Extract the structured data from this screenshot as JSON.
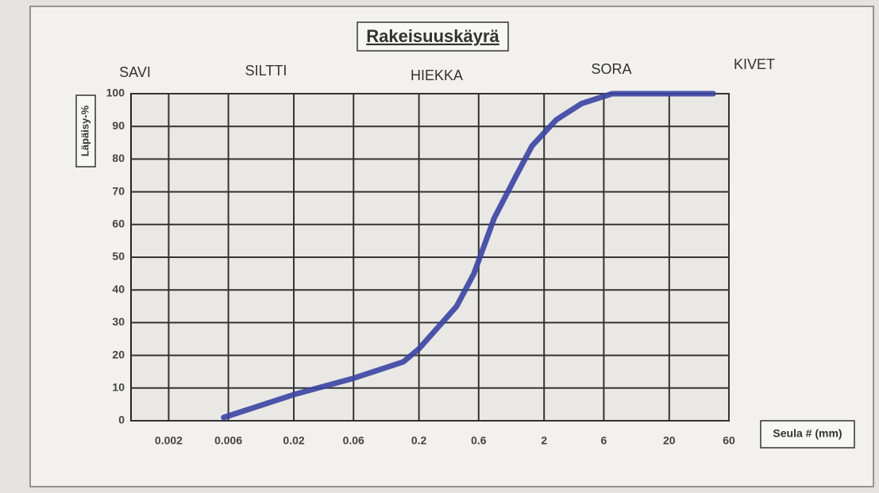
{
  "chart_data": {
    "type": "line",
    "title": "Rakeisuuskäyrä",
    "y_label": "Läpäisy-%",
    "x_label": "Seula # (mm)",
    "zones": [
      "SAVI",
      "SILTTI",
      "HIEKKA",
      "SORA",
      "KIVET"
    ],
    "x": [
      0.0055,
      0.02,
      0.06,
      0.15,
      0.2,
      0.4,
      0.55,
      0.8,
      1.2,
      1.6,
      2.5,
      4,
      7,
      20,
      45
    ],
    "values": [
      1,
      8,
      13,
      18,
      22,
      35,
      45,
      62,
      75,
      84,
      92,
      97,
      100,
      100,
      100
    ],
    "color": "#3b44a3",
    "xscale": "log",
    "xlim": [
      0.001,
      60
    ],
    "xticks": [
      0.002,
      0.006,
      0.02,
      0.06,
      0.2,
      0.6,
      2,
      6,
      20,
      60
    ],
    "ylim": [
      0,
      100
    ],
    "yticks": [
      0,
      10,
      20,
      30,
      40,
      50,
      60,
      70,
      80,
      90,
      100
    ],
    "grid": true
  }
}
